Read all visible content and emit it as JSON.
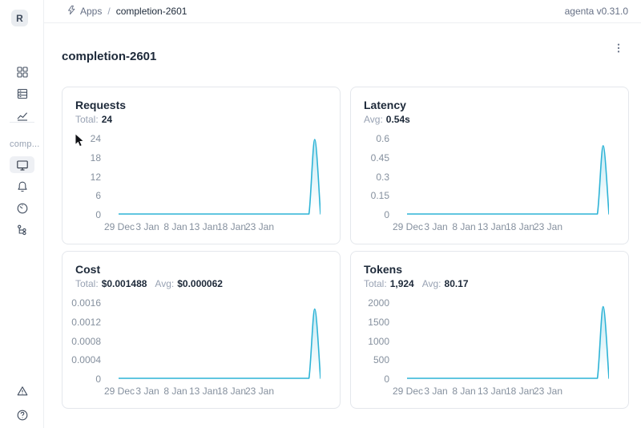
{
  "header": {
    "breadcrumb": {
      "icon": "lightning-icon",
      "section": "Apps",
      "separator": "/",
      "current": "completion-2601"
    },
    "version": "agenta v0.31.0"
  },
  "sidebar": {
    "avatar_letter": "R",
    "workspace_label": "comp...",
    "main_nav": [
      {
        "name": "apps",
        "icon": "apps-grid-icon"
      },
      {
        "name": "test-sets",
        "icon": "rows-table-icon"
      },
      {
        "name": "evaluations",
        "icon": "line-chart-icon"
      }
    ],
    "app_nav": [
      {
        "name": "overview",
        "icon": "monitor-icon",
        "active": true
      },
      {
        "name": "notifications",
        "icon": "bell-icon",
        "active": false
      },
      {
        "name": "endpoints",
        "icon": "gauge-icon",
        "active": false
      },
      {
        "name": "traces",
        "icon": "tree-icon",
        "active": false
      }
    ],
    "footer_nav": [
      {
        "name": "alerts",
        "icon": "warning-triangle-icon"
      },
      {
        "name": "help",
        "icon": "question-circle-icon"
      }
    ]
  },
  "page": {
    "title": "completion-2601",
    "menu_icon": "vertical-ellipsis-icon"
  },
  "chart_data": [
    {
      "type": "line",
      "title": "Requests",
      "stats": [
        {
          "label": "Total:",
          "value": "24"
        }
      ],
      "x_ticks": [
        "29 Dec",
        "3 Jan",
        "8 Jan",
        "13 Jan",
        "18 Jan",
        "23 Jan"
      ],
      "y_ticks": [
        "24",
        "18",
        "12",
        "6",
        "0"
      ],
      "ylim": [
        0,
        24
      ],
      "grid": false,
      "legend": false,
      "line_color": "#2db3d6",
      "values": [
        0,
        0,
        0,
        0,
        0,
        0,
        0,
        0,
        0,
        0,
        0,
        0,
        0,
        0,
        0,
        0,
        0,
        0,
        0,
        0,
        0,
        0,
        0,
        0,
        0,
        0,
        0,
        0,
        0,
        0,
        0,
        0,
        0,
        0,
        24,
        0
      ]
    },
    {
      "type": "line",
      "title": "Latency",
      "stats": [
        {
          "label": "Avg:",
          "value": "0.54s"
        }
      ],
      "x_ticks": [
        "29 Dec",
        "3 Jan",
        "8 Jan",
        "13 Jan",
        "18 Jan",
        "23 Jan"
      ],
      "y_ticks": [
        "0.6",
        "0.45",
        "0.3",
        "0.15",
        "0"
      ],
      "ylim": [
        0,
        0.6
      ],
      "grid": false,
      "legend": false,
      "line_color": "#2db3d6",
      "values": [
        0,
        0,
        0,
        0,
        0,
        0,
        0,
        0,
        0,
        0,
        0,
        0,
        0,
        0,
        0,
        0,
        0,
        0,
        0,
        0,
        0,
        0,
        0,
        0,
        0,
        0,
        0,
        0,
        0,
        0,
        0,
        0,
        0,
        0,
        0.55,
        0
      ]
    },
    {
      "type": "line",
      "title": "Cost",
      "stats": [
        {
          "label": "Total:",
          "value": "$0.001488"
        },
        {
          "label": "Avg:",
          "value": "$0.000062"
        }
      ],
      "x_ticks": [
        "29 Dec",
        "3 Jan",
        "8 Jan",
        "13 Jan",
        "18 Jan",
        "23 Jan"
      ],
      "y_ticks": [
        "0.0016",
        "0.0012",
        "0.0008",
        "0.0004",
        "0"
      ],
      "ylim": [
        0,
        0.0016
      ],
      "grid": false,
      "legend": false,
      "line_color": "#2db3d6",
      "values": [
        0,
        0,
        0,
        0,
        0,
        0,
        0,
        0,
        0,
        0,
        0,
        0,
        0,
        0,
        0,
        0,
        0,
        0,
        0,
        0,
        0,
        0,
        0,
        0,
        0,
        0,
        0,
        0,
        0,
        0,
        0,
        0,
        0,
        0,
        0.001488,
        0
      ]
    },
    {
      "type": "line",
      "title": "Tokens",
      "stats": [
        {
          "label": "Total:",
          "value": "1,924"
        },
        {
          "label": "Avg:",
          "value": "80.17"
        }
      ],
      "x_ticks": [
        "29 Dec",
        "3 Jan",
        "8 Jan",
        "13 Jan",
        "18 Jan",
        "23 Jan"
      ],
      "y_ticks": [
        "2000",
        "1500",
        "1000",
        "500",
        "0"
      ],
      "ylim": [
        0,
        2000
      ],
      "grid": false,
      "legend": false,
      "line_color": "#2db3d6",
      "values": [
        0,
        0,
        0,
        0,
        0,
        0,
        0,
        0,
        0,
        0,
        0,
        0,
        0,
        0,
        0,
        0,
        0,
        0,
        0,
        0,
        0,
        0,
        0,
        0,
        0,
        0,
        0,
        0,
        0,
        0,
        0,
        0,
        0,
        0,
        1924,
        0
      ]
    }
  ]
}
